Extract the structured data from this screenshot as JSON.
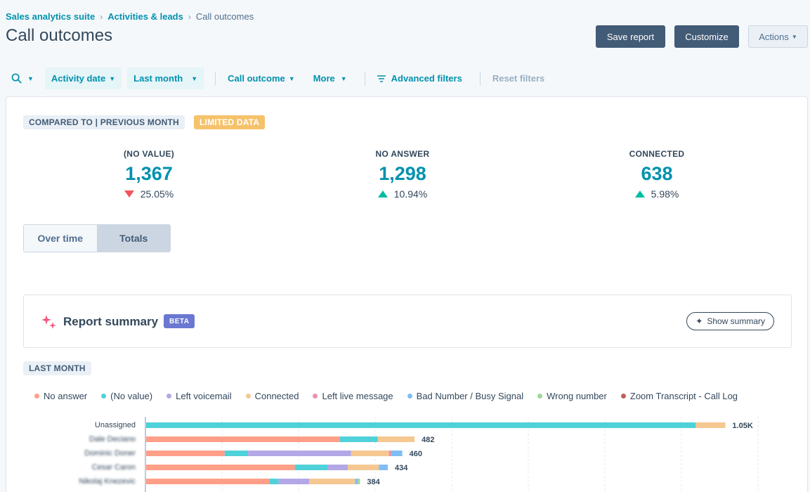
{
  "breadcrumb": {
    "items": [
      "Sales analytics suite",
      "Activities & leads"
    ],
    "current": "Call outcomes"
  },
  "page_title": "Call outcomes",
  "header_buttons": {
    "save": "Save report",
    "customize": "Customize",
    "actions": "Actions"
  },
  "filters": {
    "activity_date": "Activity date",
    "last_month": "Last month",
    "call_outcome": "Call outcome",
    "more": "More",
    "advanced": "Advanced filters",
    "reset": "Reset filters"
  },
  "tags": {
    "compared": "COMPARED TO | PREVIOUS MONTH",
    "limited": "LIMITED DATA",
    "last_month": "LAST MONTH"
  },
  "kpis": [
    {
      "label": "(NO VALUE)",
      "value": "1,367",
      "change": "25.05%",
      "direction": "down"
    },
    {
      "label": "NO ANSWER",
      "value": "1,298",
      "change": "10.94%",
      "direction": "up"
    },
    {
      "label": "CONNECTED",
      "value": "638",
      "change": "5.98%",
      "direction": "up"
    }
  ],
  "toggle": {
    "over_time": "Over time",
    "totals": "Totals"
  },
  "summary": {
    "title": "Report summary",
    "beta": "BETA",
    "show": "Show summary"
  },
  "colors": {
    "accent": "#0091ae",
    "no_answer": "#ff9f88",
    "no_value": "#4fd1d9",
    "left_voicemail": "#b4a7e6",
    "connected": "#f5c891",
    "left_live_message": "#ea90b1",
    "bad_number": "#7fbef5",
    "wrong_number": "#9fd89b",
    "zoom": "#c0605a"
  },
  "legend": [
    {
      "label": "No answer",
      "color": "#ff9f88"
    },
    {
      "label": "(No value)",
      "color": "#4fd1d9"
    },
    {
      "label": "Left voicemail",
      "color": "#b4a7e6"
    },
    {
      "label": "Connected",
      "color": "#f5c891"
    },
    {
      "label": "Left live message",
      "color": "#ea90b1"
    },
    {
      "label": "Bad Number / Busy Signal",
      "color": "#7fbef5"
    },
    {
      "label": "Wrong number",
      "color": "#9fd89b"
    },
    {
      "label": "Zoom Transcript - Call Log",
      "color": "#c0605a"
    }
  ],
  "chart_data": {
    "type": "bar",
    "orientation": "horizontal",
    "stacked": true,
    "categories": [
      "Unassigned",
      "Dale Deciano",
      "Dominic Doner",
      "Cesar Caron",
      "Nikolaj Knezevic"
    ],
    "totals_labels": [
      "1.05K",
      "482",
      "460",
      "434",
      "384"
    ],
    "xlim": [
      0,
      1100
    ],
    "grid": true,
    "series": [
      {
        "name": "No answer",
        "values": [
          0,
          348,
          141,
          267,
          222
        ]
      },
      {
        "name": "(No value)",
        "values": [
          987,
          68,
          42,
          59,
          16
        ]
      },
      {
        "name": "Left voicemail",
        "values": [
          0,
          0,
          185,
          36,
          55
        ]
      },
      {
        "name": "Connected",
        "values": [
          53,
          66,
          68,
          56,
          82
        ]
      },
      {
        "name": "Left live message",
        "values": [
          0,
          0,
          4,
          0,
          0
        ]
      },
      {
        "name": "Bad Number / Busy Signal",
        "values": [
          0,
          0,
          20,
          16,
          5
        ]
      },
      {
        "name": "Wrong number",
        "values": [
          0,
          0,
          0,
          0,
          4
        ]
      },
      {
        "name": "Zoom Transcript - Call Log",
        "values": [
          0,
          0,
          0,
          0,
          0
        ]
      }
    ]
  }
}
